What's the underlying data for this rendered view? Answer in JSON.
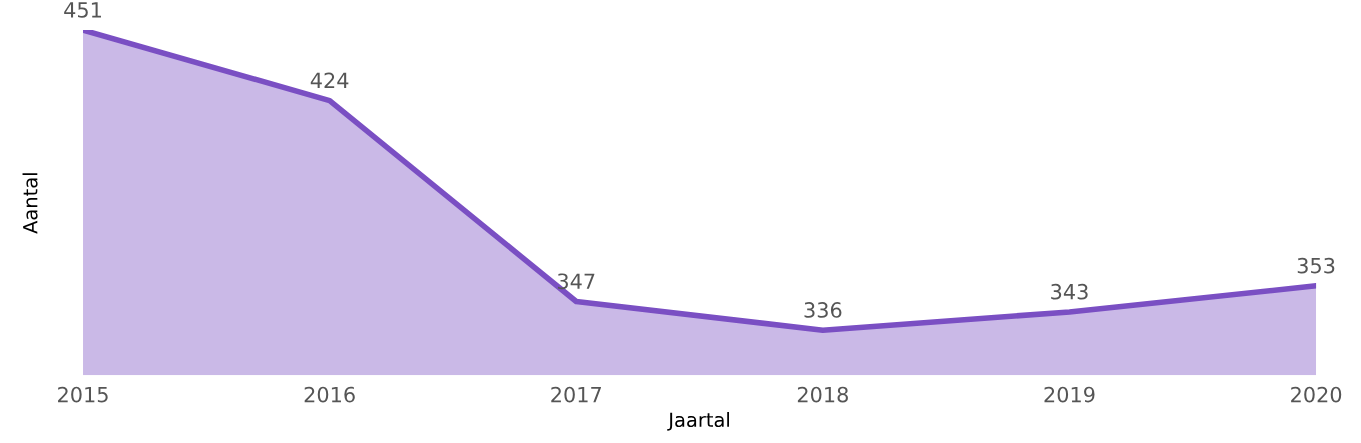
{
  "chart_data": {
    "type": "area",
    "xlabel": "Jaartal",
    "ylabel": "Aantal",
    "categories": [
      "2015",
      "2016",
      "2017",
      "2018",
      "2019",
      "2020"
    ],
    "series": [
      {
        "color": "#7a4fc3",
        "values": [
          451,
          424,
          347,
          336,
          343,
          353
        ]
      }
    ],
    "data_labels": true,
    "tick_labels": "x",
    "grid": false,
    "legend": false
  }
}
